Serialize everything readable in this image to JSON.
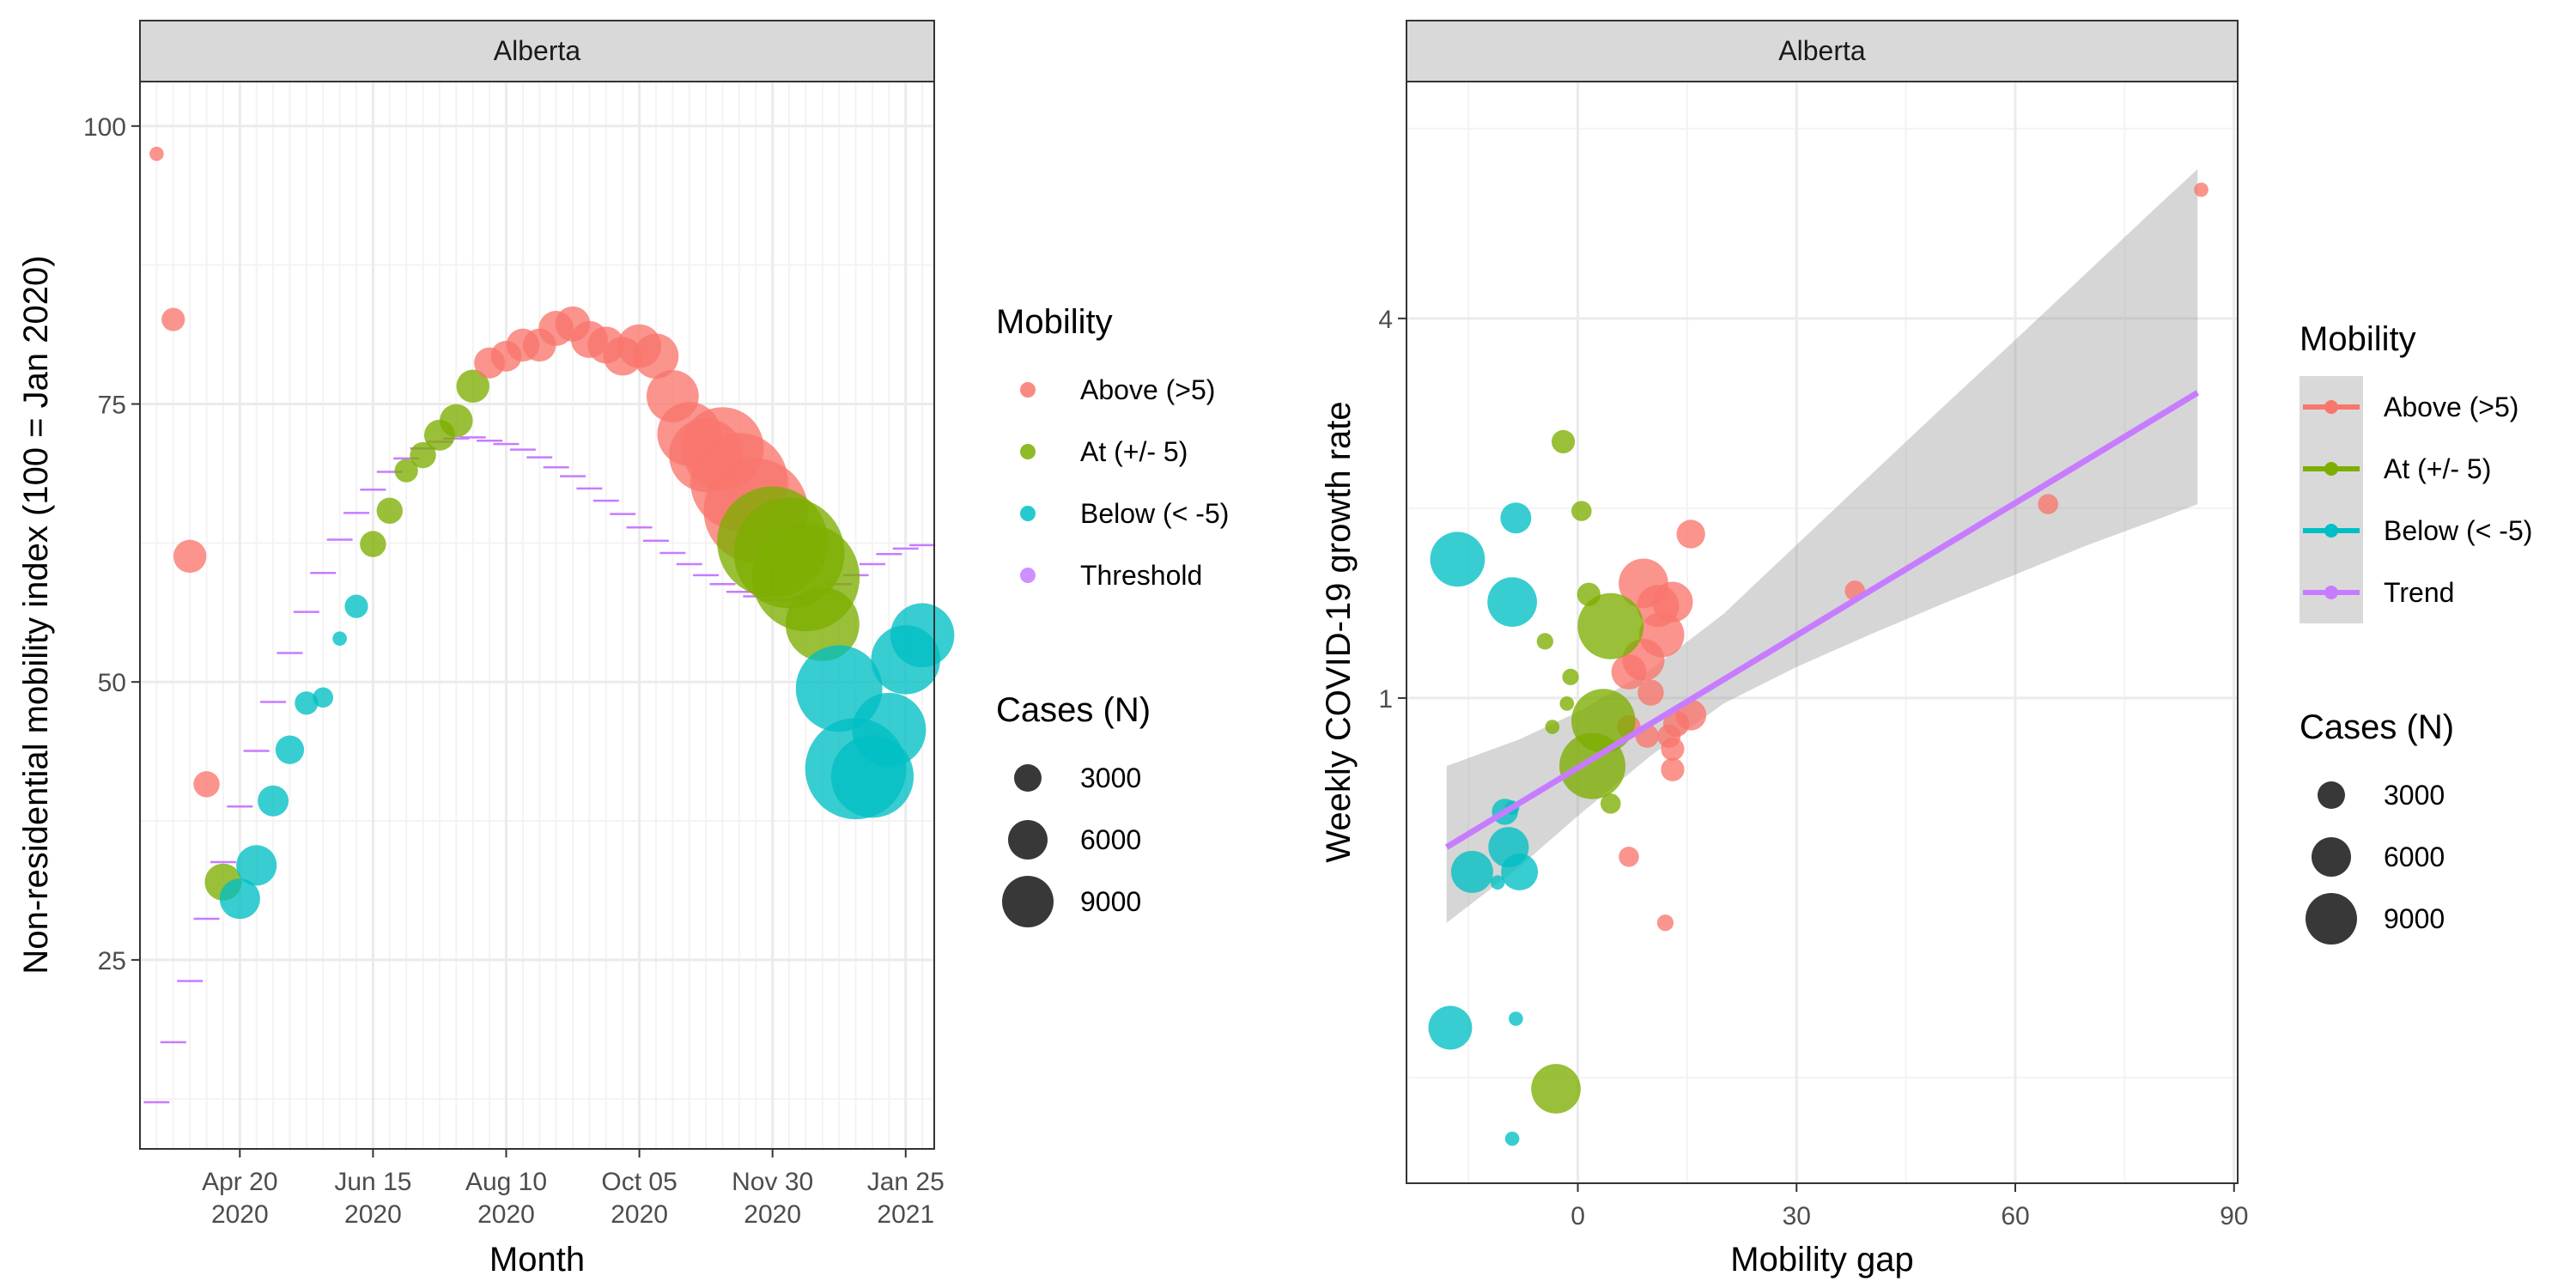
{
  "chart_data": [
    {
      "type": "scatter",
      "strip": "Alberta",
      "xlabel": "Month",
      "ylabel": "Non-residential mobility index (100 = Jan 2020)",
      "x_ticks": [
        {
          "date": "2020-04-20",
          "l1": "Apr 20",
          "l2": "2020"
        },
        {
          "date": "2020-06-15",
          "l1": "Jun 15",
          "l2": "2020"
        },
        {
          "date": "2020-08-10",
          "l1": "Aug 10",
          "l2": "2020"
        },
        {
          "date": "2020-10-05",
          "l1": "Oct 05",
          "l2": "2020"
        },
        {
          "date": "2020-11-30",
          "l1": "Nov 30",
          "l2": "2020"
        },
        {
          "date": "2021-01-25",
          "l1": "Jan 25",
          "l2": "2021"
        }
      ],
      "xlim": [
        "2020-03-09",
        "2021-02-06"
      ],
      "y_ticks": [
        25,
        50,
        75,
        100
      ],
      "ylim": [
        8,
        104
      ],
      "points": [
        {
          "date": "2020-03-16",
          "y": 97.5,
          "cases": 150,
          "cat": "Above (>5)"
        },
        {
          "date": "2020-03-23",
          "y": 82.6,
          "cases": 400,
          "cat": "Above (>5)"
        },
        {
          "date": "2020-03-30",
          "y": 61.3,
          "cases": 800,
          "cat": "Above (>5)"
        },
        {
          "date": "2020-04-06",
          "y": 40.8,
          "cases": 500,
          "cat": "Above (>5)"
        },
        {
          "date": "2020-04-13",
          "y": 32.0,
          "cases": 1000,
          "cat": "At (+/- 5)"
        },
        {
          "date": "2020-04-20",
          "y": 30.5,
          "cases": 1200,
          "cat": "Below (< -5)"
        },
        {
          "date": "2020-04-27",
          "y": 33.5,
          "cases": 1200,
          "cat": "Below (< -5)"
        },
        {
          "date": "2020-05-04",
          "y": 39.3,
          "cases": 700,
          "cat": "Below (< -5)"
        },
        {
          "date": "2020-05-11",
          "y": 43.9,
          "cases": 600,
          "cat": "Below (< -5)"
        },
        {
          "date": "2020-05-18",
          "y": 48.1,
          "cases": 400,
          "cat": "Below (< -5)"
        },
        {
          "date": "2020-05-25",
          "y": 48.6,
          "cases": 300,
          "cat": "Below (< -5)"
        },
        {
          "date": "2020-06-01",
          "y": 53.9,
          "cases": 150,
          "cat": "Below (< -5)"
        },
        {
          "date": "2020-06-08",
          "y": 56.8,
          "cases": 400,
          "cat": "Below (< -5)"
        },
        {
          "date": "2020-06-15",
          "y": 62.4,
          "cases": 500,
          "cat": "At (+/- 5)"
        },
        {
          "date": "2020-06-22",
          "y": 65.4,
          "cases": 500,
          "cat": "At (+/- 5)"
        },
        {
          "date": "2020-06-29",
          "y": 69.0,
          "cases": 400,
          "cat": "At (+/- 5)"
        },
        {
          "date": "2020-07-06",
          "y": 70.4,
          "cases": 500,
          "cat": "At (+/- 5)"
        },
        {
          "date": "2020-07-13",
          "y": 72.2,
          "cases": 700,
          "cat": "At (+/- 5)"
        },
        {
          "date": "2020-07-20",
          "y": 73.5,
          "cases": 800,
          "cat": "At (+/- 5)"
        },
        {
          "date": "2020-07-27",
          "y": 76.6,
          "cases": 800,
          "cat": "At (+/- 5)"
        },
        {
          "date": "2020-08-03",
          "y": 78.7,
          "cases": 700,
          "cat": "Above (>5)"
        },
        {
          "date": "2020-08-10",
          "y": 79.3,
          "cases": 700,
          "cat": "Above (>5)"
        },
        {
          "date": "2020-08-17",
          "y": 80.3,
          "cases": 800,
          "cat": "Above (>5)"
        },
        {
          "date": "2020-08-24",
          "y": 80.3,
          "cases": 800,
          "cat": "Above (>5)"
        },
        {
          "date": "2020-08-31",
          "y": 81.8,
          "cases": 900,
          "cat": "Above (>5)"
        },
        {
          "date": "2020-09-07",
          "y": 82.2,
          "cases": 900,
          "cat": "Above (>5)"
        },
        {
          "date": "2020-09-14",
          "y": 80.8,
          "cases": 1000,
          "cat": "Above (>5)"
        },
        {
          "date": "2020-09-21",
          "y": 80.3,
          "cases": 1000,
          "cat": "Above (>5)"
        },
        {
          "date": "2020-09-28",
          "y": 79.3,
          "cases": 1100,
          "cat": "Above (>5)"
        },
        {
          "date": "2020-10-05",
          "y": 80.2,
          "cases": 1400,
          "cat": "Above (>5)"
        },
        {
          "date": "2020-10-12",
          "y": 79.3,
          "cases": 1500,
          "cat": "Above (>5)"
        },
        {
          "date": "2020-10-19",
          "y": 75.7,
          "cases": 2000,
          "cat": "Above (>5)"
        },
        {
          "date": "2020-10-26",
          "y": 72.3,
          "cases": 3000,
          "cat": "Above (>5)"
        },
        {
          "date": "2020-11-02",
          "y": 70.4,
          "cases": 4000,
          "cat": "Above (>5)"
        },
        {
          "date": "2020-11-09",
          "y": 71.0,
          "cases": 5000,
          "cat": "Above (>5)"
        },
        {
          "date": "2020-11-16",
          "y": 68.0,
          "cases": 7000,
          "cat": "Above (>5)"
        },
        {
          "date": "2020-11-23",
          "y": 65.4,
          "cases": 8000,
          "cat": "Above (>5)"
        },
        {
          "date": "2020-11-30",
          "y": 62.6,
          "cases": 9000,
          "cat": "At (+/- 5)"
        },
        {
          "date": "2020-12-07",
          "y": 61.6,
          "cases": 9000,
          "cat": "At (+/- 5)"
        },
        {
          "date": "2020-12-14",
          "y": 59.4,
          "cases": 8500,
          "cat": "At (+/- 5)"
        },
        {
          "date": "2020-12-21",
          "y": 55.2,
          "cases": 4000,
          "cat": "At (+/- 5)"
        },
        {
          "date": "2020-12-28",
          "y": 49.4,
          "cases": 5500,
          "cat": "Below (< -5)"
        },
        {
          "date": "2021-01-04",
          "y": 42.2,
          "cases": 7500,
          "cat": "Below (< -5)"
        },
        {
          "date": "2021-01-11",
          "y": 41.5,
          "cases": 5000,
          "cat": "Below (< -5)"
        },
        {
          "date": "2021-01-18",
          "y": 45.7,
          "cases": 4000,
          "cat": "Below (< -5)"
        },
        {
          "date": "2021-01-25",
          "y": 52.0,
          "cases": 3500,
          "cat": "Below (< -5)"
        },
        {
          "date": "2021-02-01",
          "y": 54.2,
          "cases": 3000,
          "cat": "Below (< -5)"
        }
      ],
      "threshold": [
        {
          "date": "2020-03-16",
          "y": 12.2
        },
        {
          "date": "2020-03-23",
          "y": 17.6
        },
        {
          "date": "2020-03-30",
          "y": 23.1
        },
        {
          "date": "2020-04-06",
          "y": 28.7
        },
        {
          "date": "2020-04-13",
          "y": 33.8
        },
        {
          "date": "2020-04-20",
          "y": 38.8
        },
        {
          "date": "2020-04-27",
          "y": 43.8
        },
        {
          "date": "2020-05-04",
          "y": 48.2
        },
        {
          "date": "2020-05-11",
          "y": 52.6
        },
        {
          "date": "2020-05-18",
          "y": 56.3
        },
        {
          "date": "2020-05-25",
          "y": 59.8
        },
        {
          "date": "2020-06-01",
          "y": 62.8
        },
        {
          "date": "2020-06-08",
          "y": 65.2
        },
        {
          "date": "2020-06-15",
          "y": 67.3
        },
        {
          "date": "2020-06-22",
          "y": 68.9
        },
        {
          "date": "2020-06-29",
          "y": 70.1
        },
        {
          "date": "2020-07-06",
          "y": 71.0
        },
        {
          "date": "2020-07-13",
          "y": 71.6
        },
        {
          "date": "2020-07-20",
          "y": 71.9
        },
        {
          "date": "2020-07-27",
          "y": 72.0
        },
        {
          "date": "2020-08-03",
          "y": 71.7
        },
        {
          "date": "2020-08-10",
          "y": 71.4
        },
        {
          "date": "2020-08-17",
          "y": 70.9
        },
        {
          "date": "2020-08-24",
          "y": 70.2
        },
        {
          "date": "2020-08-31",
          "y": 69.3
        },
        {
          "date": "2020-09-07",
          "y": 68.5
        },
        {
          "date": "2020-09-14",
          "y": 67.4
        },
        {
          "date": "2020-09-21",
          "y": 66.3
        },
        {
          "date": "2020-09-28",
          "y": 65.1
        },
        {
          "date": "2020-10-05",
          "y": 63.9
        },
        {
          "date": "2020-10-12",
          "y": 62.7
        },
        {
          "date": "2020-10-19",
          "y": 61.6
        },
        {
          "date": "2020-10-26",
          "y": 60.6
        },
        {
          "date": "2020-11-02",
          "y": 59.6
        },
        {
          "date": "2020-11-09",
          "y": 58.8
        },
        {
          "date": "2020-11-16",
          "y": 58.1
        },
        {
          "date": "2020-11-23",
          "y": 57.7
        },
        {
          "date": "2020-11-30",
          "y": 57.4
        },
        {
          "date": "2020-12-07",
          "y": 57.4
        },
        {
          "date": "2020-12-14",
          "y": 57.6
        },
        {
          "date": "2020-12-21",
          "y": 58.1
        },
        {
          "date": "2020-12-28",
          "y": 58.8
        },
        {
          "date": "2021-01-04",
          "y": 59.6
        },
        {
          "date": "2021-01-11",
          "y": 60.6
        },
        {
          "date": "2021-01-18",
          "y": 61.5
        },
        {
          "date": "2021-01-25",
          "y": 62.0
        },
        {
          "date": "2021-02-01",
          "y": 62.3
        }
      ]
    },
    {
      "type": "scatter",
      "strip": "Alberta",
      "xlabel": "Mobility gap",
      "ylabel": "Weekly COVID-19 growth rate",
      "y_scale": "log2",
      "x_ticks": [
        0,
        30,
        60,
        90
      ],
      "xlim": [
        -23.5,
        90.5
      ],
      "y_ticks": [
        1,
        4
      ],
      "ylim": [
        0.17,
        9.5
      ],
      "trend": {
        "x": [
          -18,
          85
        ],
        "y": [
          0.58,
          3.05
        ]
      },
      "band": [
        {
          "x": -18,
          "lo": 0.44,
          "hi": 0.78
        },
        {
          "x": -8,
          "lo": 0.54,
          "hi": 0.86
        },
        {
          "x": 0,
          "lo": 0.65,
          "hi": 0.95
        },
        {
          "x": 10,
          "lo": 0.81,
          "hi": 1.11
        },
        {
          "x": 20,
          "lo": 0.98,
          "hi": 1.36
        },
        {
          "x": 30,
          "lo": 1.12,
          "hi": 1.75
        },
        {
          "x": 40,
          "lo": 1.26,
          "hi": 2.25
        },
        {
          "x": 50,
          "lo": 1.41,
          "hi": 2.89
        },
        {
          "x": 60,
          "lo": 1.57,
          "hi": 3.7
        },
        {
          "x": 70,
          "lo": 1.75,
          "hi": 4.75
        },
        {
          "x": 80,
          "lo": 1.93,
          "hi": 6.1
        },
        {
          "x": 85,
          "lo": 2.03,
          "hi": 6.9
        }
      ],
      "points": [
        {
          "x": 85.5,
          "y": 6.4,
          "cases": 150,
          "cat": "Above (>5)"
        },
        {
          "x": 64.5,
          "y": 2.03,
          "cases": 300,
          "cat": "Above (>5)"
        },
        {
          "x": 38,
          "y": 1.48,
          "cases": 300,
          "cat": "Above (>5)"
        },
        {
          "x": 15.5,
          "y": 1.82,
          "cases": 600,
          "cat": "Above (>5)"
        },
        {
          "x": 9,
          "y": 1.52,
          "cases": 1800,
          "cat": "Above (>5)"
        },
        {
          "x": 11,
          "y": 1.4,
          "cases": 1300,
          "cat": "Above (>5)"
        },
        {
          "x": 13,
          "y": 1.42,
          "cases": 1200,
          "cat": "Above (>5)"
        },
        {
          "x": 11.5,
          "y": 1.26,
          "cases": 1500,
          "cat": "Above (>5)"
        },
        {
          "x": 9,
          "y": 1.15,
          "cases": 1300,
          "cat": "Above (>5)"
        },
        {
          "x": 7,
          "y": 1.1,
          "cases": 900,
          "cat": "Above (>5)"
        },
        {
          "x": 10,
          "y": 1.02,
          "cases": 500,
          "cat": "Above (>5)"
        },
        {
          "x": 15.5,
          "y": 0.94,
          "cases": 700,
          "cat": "Above (>5)"
        },
        {
          "x": 13.5,
          "y": 0.91,
          "cases": 500,
          "cat": "Above (>5)"
        },
        {
          "x": 12.5,
          "y": 0.87,
          "cases": 400,
          "cat": "Above (>5)"
        },
        {
          "x": 7,
          "y": 0.9,
          "cases": 400,
          "cat": "Above (>5)"
        },
        {
          "x": 9.5,
          "y": 0.87,
          "cases": 400,
          "cat": "Above (>5)"
        },
        {
          "x": 13,
          "y": 0.83,
          "cases": 400,
          "cat": "Above (>5)"
        },
        {
          "x": 13,
          "y": 0.77,
          "cases": 400,
          "cat": "Above (>5)"
        },
        {
          "x": 7,
          "y": 0.56,
          "cases": 300,
          "cat": "Above (>5)"
        },
        {
          "x": 12,
          "y": 0.44,
          "cases": 200,
          "cat": "Above (>5)"
        },
        {
          "x": -2,
          "y": 2.55,
          "cases": 400,
          "cat": "At (+/- 5)"
        },
        {
          "x": 0.5,
          "y": 1.98,
          "cases": 300,
          "cat": "At (+/- 5)"
        },
        {
          "x": 1.5,
          "y": 1.46,
          "cases": 400,
          "cat": "At (+/- 5)"
        },
        {
          "x": 4.5,
          "y": 1.3,
          "cases": 3200,
          "cat": "At (+/- 5)"
        },
        {
          "x": -4.5,
          "y": 1.23,
          "cases": 200,
          "cat": "At (+/- 5)"
        },
        {
          "x": -1,
          "y": 1.08,
          "cases": 200,
          "cat": "At (+/- 5)"
        },
        {
          "x": -1.5,
          "y": 0.98,
          "cases": 150,
          "cat": "At (+/- 5)"
        },
        {
          "x": 3.5,
          "y": 0.92,
          "cases": 3000,
          "cat": "At (+/- 5)"
        },
        {
          "x": -3.5,
          "y": 0.9,
          "cases": 150,
          "cat": "At (+/- 5)"
        },
        {
          "x": 2,
          "y": 0.78,
          "cases": 3200,
          "cat": "At (+/- 5)"
        },
        {
          "x": 4.5,
          "y": 0.68,
          "cases": 300,
          "cat": "At (+/- 5)"
        },
        {
          "x": -3,
          "y": 0.24,
          "cases": 1800,
          "cat": "At (+/- 5)"
        },
        {
          "x": -8.5,
          "y": 1.93,
          "cases": 700,
          "cat": "Below (< -5)"
        },
        {
          "x": -16.5,
          "y": 1.66,
          "cases": 2200,
          "cat": "Below (< -5)"
        },
        {
          "x": -9,
          "y": 1.42,
          "cases": 1800,
          "cat": "Below (< -5)"
        },
        {
          "x": -9,
          "y": 0.67,
          "cases": 150,
          "cat": "Below (< -5)"
        },
        {
          "x": -10,
          "y": 0.66,
          "cases": 500,
          "cat": "Below (< -5)"
        },
        {
          "x": -9.5,
          "y": 0.58,
          "cases": 1200,
          "cat": "Below (< -5)"
        },
        {
          "x": -14.5,
          "y": 0.53,
          "cases": 1300,
          "cat": "Below (< -5)"
        },
        {
          "x": -8,
          "y": 0.53,
          "cases": 1000,
          "cat": "Below (< -5)"
        },
        {
          "x": -11,
          "y": 0.51,
          "cases": 150,
          "cat": "Below (< -5)"
        },
        {
          "x": -17.5,
          "y": 0.3,
          "cases": 1400,
          "cat": "Below (< -5)"
        },
        {
          "x": -8.5,
          "y": 0.31,
          "cases": 150,
          "cat": "Below (< -5)"
        },
        {
          "x": -9,
          "y": 0.2,
          "cases": 150,
          "cat": "Below (< -5)"
        }
      ]
    }
  ],
  "colors": {
    "Above (>5)": "#F8766D",
    "At (+/- 5)": "#7CAE00",
    "Below (< -5)": "#00BFC4",
    "Threshold": "#C77CFF",
    "Trend": "#C77CFF",
    "band": "#999999",
    "strip_fill": "#D9D9D9",
    "grid_major": "#EBEBEB",
    "grid_minor": "#F3F3F3"
  },
  "legend_left": {
    "color_title": "Mobility",
    "color_items": [
      "Above (>5)",
      "At (+/- 5)",
      "Below (< -5)",
      "Threshold"
    ],
    "size_title": "Cases (N)",
    "size_items": [
      3000,
      6000,
      9000
    ]
  },
  "legend_right": {
    "color_title": "Mobility",
    "color_items": [
      "Above (>5)",
      "At (+/- 5)",
      "Below (< -5)",
      "Trend"
    ],
    "size_title": "Cases (N)",
    "size_items": [
      3000,
      6000,
      9000
    ]
  }
}
